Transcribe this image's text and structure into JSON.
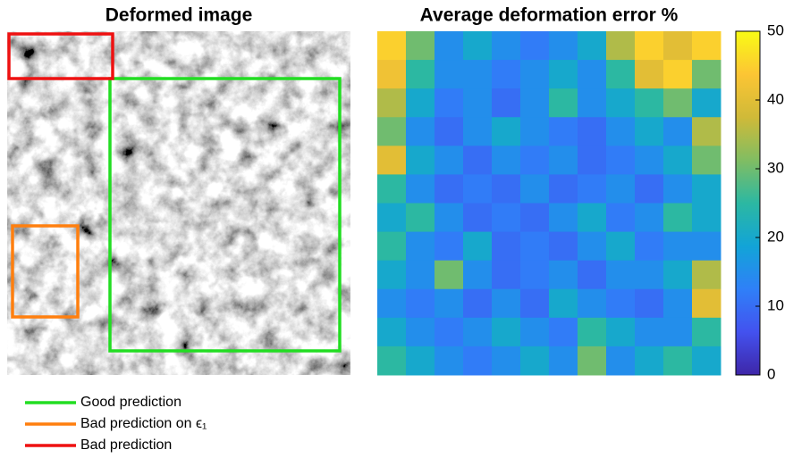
{
  "image_panel": {
    "title": "Deformed image",
    "legend": [
      {
        "label": "Good prediction",
        "color": "#22dd22"
      },
      {
        "label": "Bad prediction on ϵ₁",
        "color": "#ff7f0e"
      },
      {
        "label": "Bad prediction",
        "color": "#ee1111"
      }
    ]
  },
  "chart_data": {
    "type": "heatmap",
    "title": "Average deformation error %",
    "z": [
      [
        45,
        30,
        15,
        20,
        15,
        12,
        15,
        20,
        35,
        45,
        40,
        45
      ],
      [
        42,
        25,
        15,
        15,
        12,
        15,
        20,
        15,
        25,
        40,
        45,
        30
      ],
      [
        35,
        20,
        12,
        15,
        10,
        15,
        25,
        15,
        20,
        25,
        30,
        20
      ],
      [
        30,
        15,
        10,
        15,
        20,
        15,
        12,
        10,
        15,
        20,
        15,
        35
      ],
      [
        40,
        20,
        15,
        10,
        15,
        12,
        15,
        10,
        12,
        15,
        20,
        30
      ],
      [
        25,
        15,
        10,
        12,
        10,
        15,
        10,
        12,
        15,
        10,
        15,
        20
      ],
      [
        20,
        25,
        15,
        10,
        12,
        10,
        15,
        20,
        12,
        15,
        25,
        20
      ],
      [
        25,
        15,
        12,
        20,
        10,
        12,
        10,
        15,
        20,
        12,
        15,
        15
      ],
      [
        20,
        15,
        30,
        15,
        10,
        12,
        15,
        10,
        15,
        15,
        20,
        35
      ],
      [
        15,
        12,
        15,
        10,
        15,
        10,
        20,
        15,
        12,
        10,
        15,
        40
      ],
      [
        20,
        15,
        12,
        15,
        20,
        15,
        12,
        25,
        20,
        15,
        15,
        25
      ],
      [
        25,
        20,
        15,
        12,
        15,
        20,
        15,
        30,
        15,
        20,
        25,
        20
      ]
    ],
    "clim": [
      0,
      50
    ],
    "colorbar_ticks": [
      0,
      10,
      20,
      30,
      40,
      50
    ],
    "colormap": [
      "#3e26a8",
      "#4352ef",
      "#2f80f8",
      "#12a4d7",
      "#2cb8a2",
      "#81bd62",
      "#d0ba38",
      "#fcc534",
      "#f9fb15"
    ]
  }
}
